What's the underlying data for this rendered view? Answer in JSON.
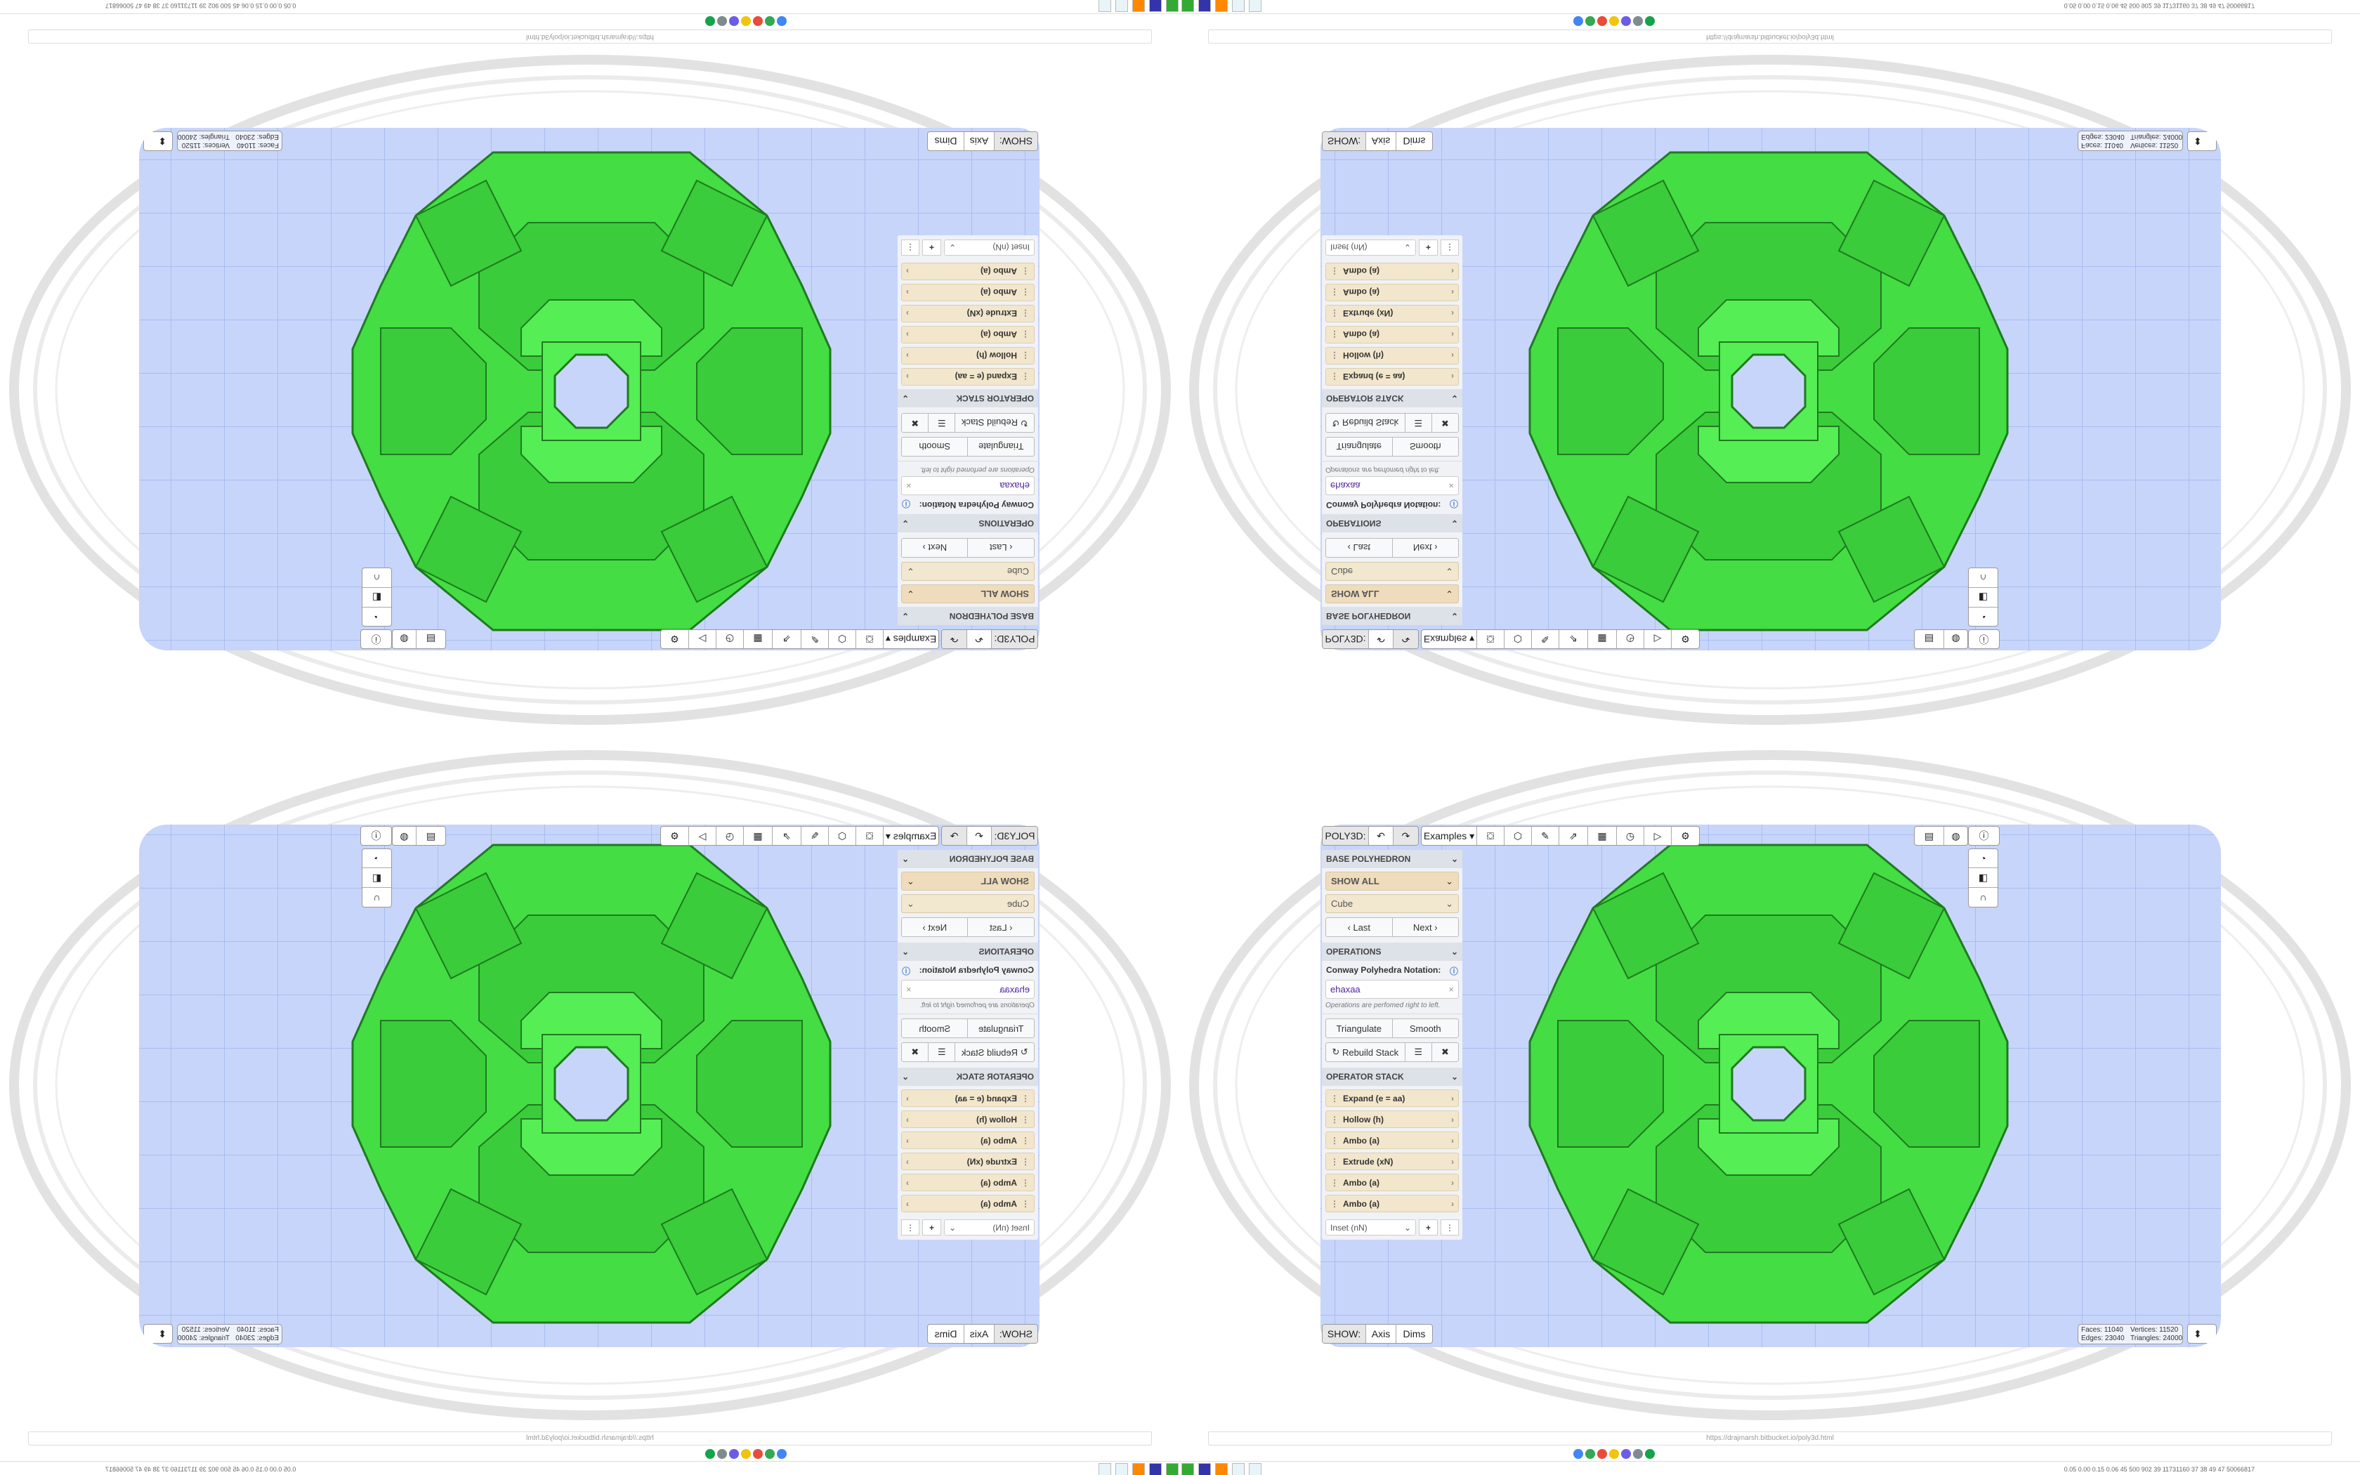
{
  "browser": {
    "url": "https://drajmarsh.bitbucket.io/poly3d.html"
  },
  "taskbar": {
    "sysinfo": "0.05 0.00 0.15 0.06 45 500 902 39 11731160 37 38 49 47 50066817"
  },
  "toolbar": {
    "app_label": "POLY3D:",
    "undo_icon": "undo-icon",
    "redo_icon": "redo-icon",
    "examples_label": "Examples",
    "tools": [
      "paint-bucket-icon",
      "cube-play-icon",
      "edit-pen-icon",
      "export-icon",
      "calendar-icon",
      "clock-icon",
      "play-icon",
      "gear-icon"
    ],
    "right_tools": [
      "date-time-icon",
      "globe-icon",
      "info-icon"
    ],
    "side_tools": [
      "orbit-icon",
      "frame-icon",
      "magnet-icon"
    ]
  },
  "base_polyhedron": {
    "header": "BASE POLYHEDRON",
    "filter": "SHOW ALL",
    "shape": "Cube",
    "last_label": "Last",
    "next_label": "Next"
  },
  "operations": {
    "header": "OPERATIONS",
    "notation_label": "Conway Polyhedra Notation:",
    "notation_value": "ehaxaa",
    "hint": "Operations are perfomed right to left.",
    "triangulate_label": "Triangulate",
    "smooth_label": "Smooth",
    "rebuild_label": "Rebuild Stack"
  },
  "operator_stack": {
    "header": "OPERATOR STACK",
    "items": [
      "Expand (e = aa)",
      "Hollow (h)",
      "Ambo (a)",
      "Extrude (xN)",
      "Ambo (a)",
      "Ambo (a)"
    ],
    "add_select": "Inset (nN)"
  },
  "show": {
    "label": "SHOW:",
    "axis": "Axis",
    "dims": "Dims"
  },
  "stats": {
    "faces": "Faces:  11040",
    "vertices": "Vertices:  11520",
    "edges": "Edges:  23040",
    "triangles": "Triangles: 24000"
  },
  "colors": {
    "model": "#44dd44",
    "viewport": "#c7d5fa",
    "panel_item": "#f2e6cc"
  }
}
